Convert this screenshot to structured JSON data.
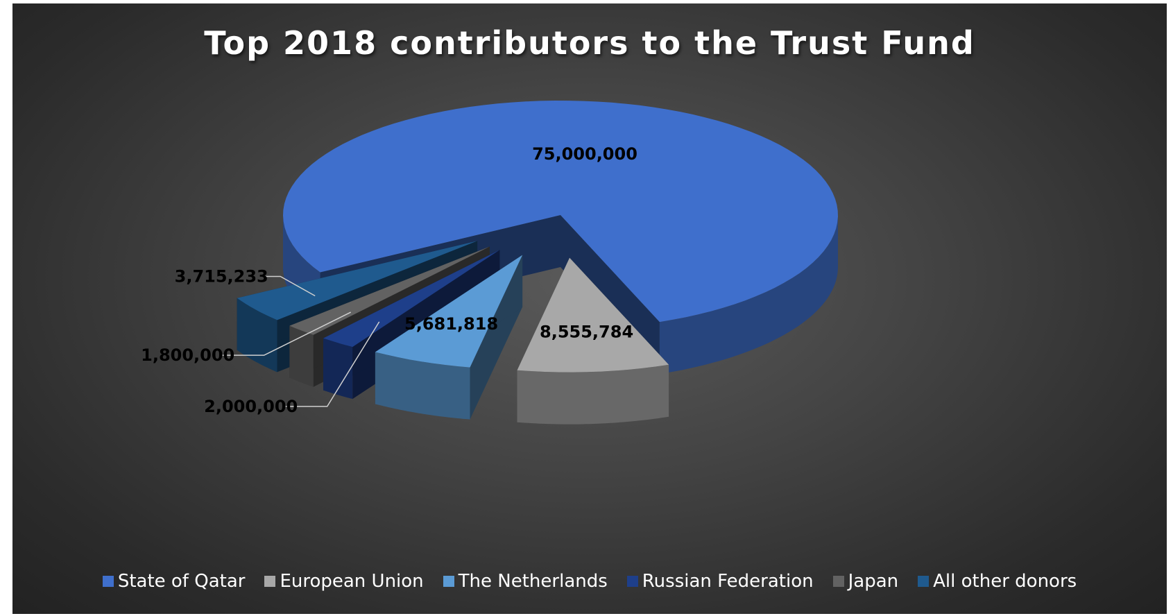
{
  "chart_data": {
    "type": "pie",
    "title": "Top 2018 contributors to the Trust Fund",
    "categories": [
      "State of Qatar",
      "European Union",
      "The Netherlands",
      "Russian Federation",
      "Japan",
      "All other donors"
    ],
    "values": [
      75000000,
      8555784,
      5681818,
      2000000,
      1800000,
      3715233
    ],
    "data_labels": [
      "75,000,000",
      "8,555,784",
      "5,681,818",
      "2,000,000",
      "1,800,000",
      "3,715,233"
    ],
    "colors": [
      "#3f6fcc",
      "#a8a8a8",
      "#5b9bd5",
      "#1e3f8a",
      "#626262",
      "#1f5a8e"
    ],
    "legend_position": "bottom",
    "style": "3d-exploded"
  }
}
